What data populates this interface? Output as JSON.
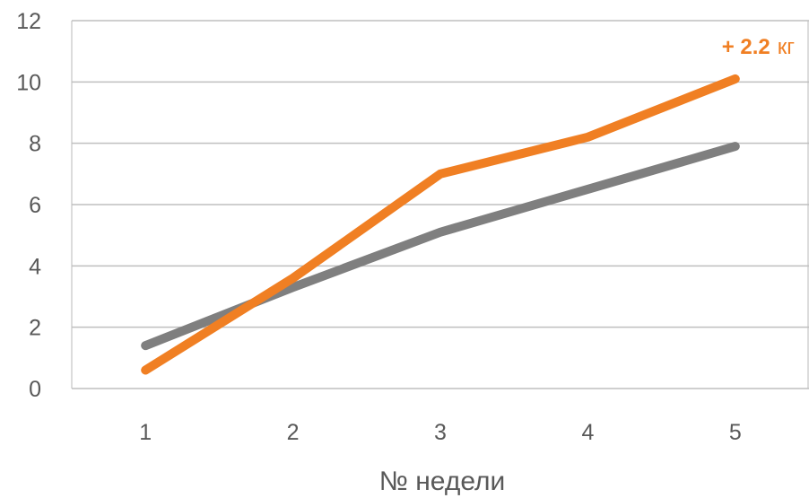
{
  "chart_data": {
    "type": "line",
    "title": "",
    "xlabel": "№ недели",
    "ylabel": "",
    "categories": [
      "1",
      "2",
      "3",
      "4",
      "5"
    ],
    "ylim": [
      0,
      12
    ],
    "yticks": [
      "0",
      "2",
      "4",
      "6",
      "8",
      "10",
      "12"
    ],
    "grid": true,
    "legend": "none",
    "series": [
      {
        "color": "#7f7f7f",
        "values": [
          1.4,
          3.3,
          5.1,
          6.5,
          7.9
        ]
      },
      {
        "color": "#f07f23",
        "values": [
          0.6,
          3.6,
          7.0,
          8.2,
          10.1
        ]
      }
    ],
    "annotations": [
      {
        "text_bold": "+ 2.2",
        "text_unit": "кг",
        "color": "#f07f23",
        "near_category": "5",
        "series_index": 1
      }
    ]
  }
}
